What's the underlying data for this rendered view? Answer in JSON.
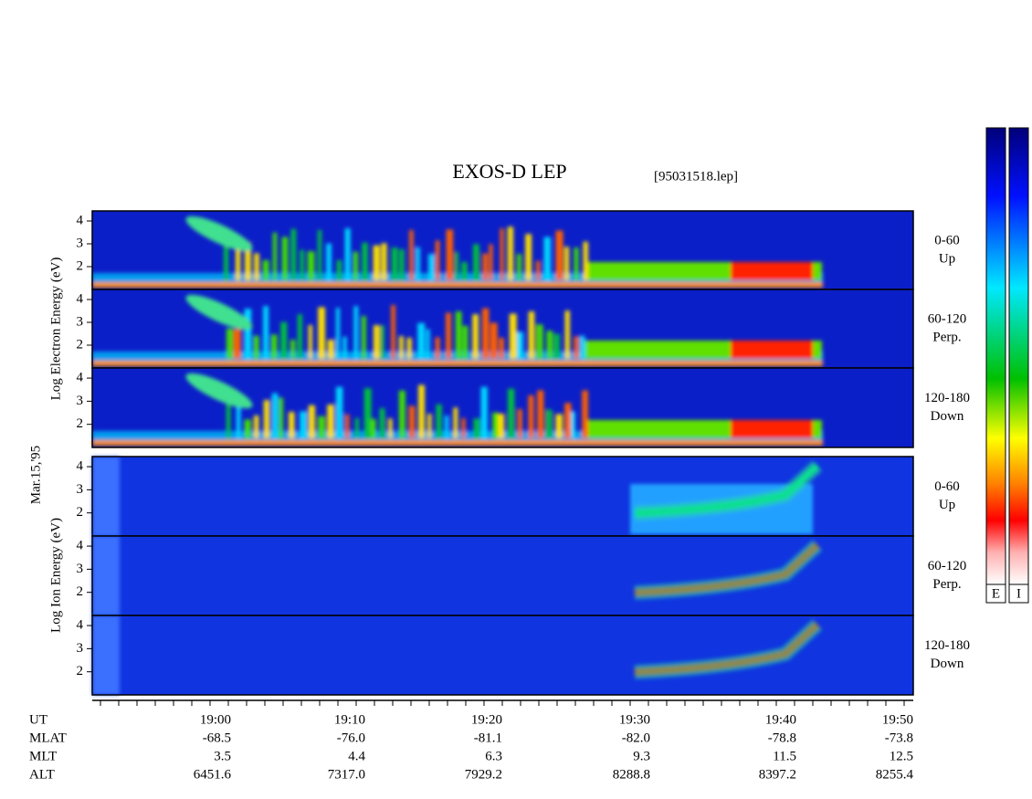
{
  "header": {
    "title": "EXOS-D LEP",
    "file": "[95031518.lep]"
  },
  "axes": {
    "y_label_electron": "Log Electron Energy (eV)",
    "y_label_ion": "Log Ion Energy (eV)",
    "date": "Mar.15,'95",
    "yticks": [
      2,
      3,
      4
    ]
  },
  "panels": [
    {
      "label": "0-60",
      "sublabel": "Up"
    },
    {
      "label": "60-120",
      "sublabel": "Perp."
    },
    {
      "label": "120-180",
      "sublabel": "Down"
    },
    {
      "label": "0-60",
      "sublabel": "Up"
    },
    {
      "label": "60-120",
      "sublabel": "Perp."
    },
    {
      "label": "120-180",
      "sublabel": "Down"
    }
  ],
  "table": {
    "rows": [
      [
        "UT",
        "19:00",
        "19:10",
        "19:20",
        "19:30",
        "19:40",
        "19:50"
      ],
      [
        "MLAT",
        "-68.5",
        "-76.0",
        "-81.1",
        "-82.0",
        "-78.8",
        "-73.8"
      ],
      [
        "MLT",
        "3.5",
        "4.4",
        "6.3",
        "9.3",
        "11.5",
        "12.5"
      ],
      [
        "ALT",
        "6451.6",
        "7317.0",
        "7929.2",
        "8288.8",
        "8397.2",
        "8255.4"
      ]
    ]
  },
  "colorbars": [
    "E",
    "I"
  ]
}
